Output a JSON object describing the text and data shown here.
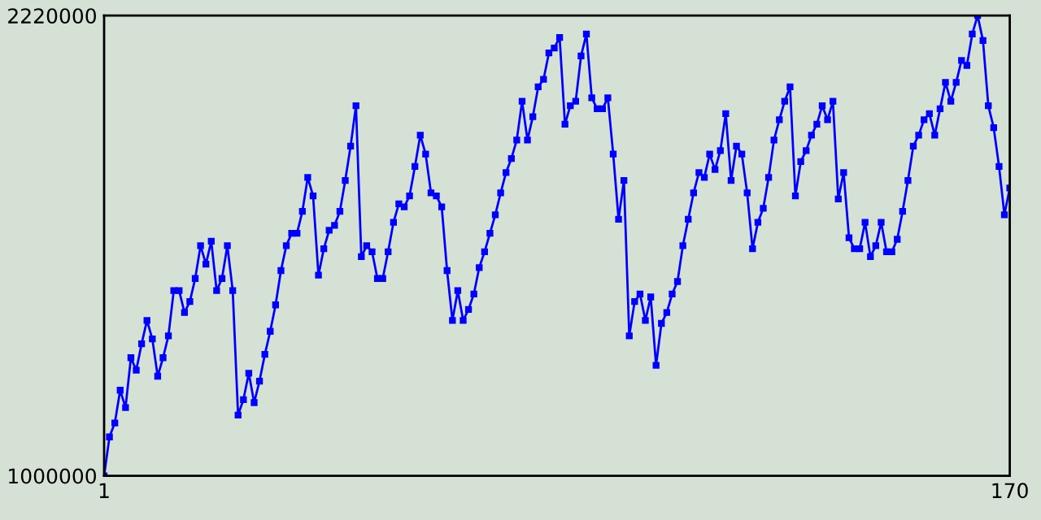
{
  "chart_data": {
    "type": "line",
    "x": [
      1,
      2,
      3,
      4,
      5,
      6,
      7,
      8,
      9,
      10,
      11,
      12,
      13,
      14,
      15,
      16,
      17,
      18,
      19,
      20,
      21,
      22,
      23,
      24,
      25,
      26,
      27,
      28,
      29,
      30,
      31,
      32,
      33,
      34,
      35,
      36,
      37,
      38,
      39,
      40,
      41,
      42,
      43,
      44,
      45,
      46,
      47,
      48,
      49,
      50,
      51,
      52,
      53,
      54,
      55,
      56,
      57,
      58,
      59,
      60,
      61,
      62,
      63,
      64,
      65,
      66,
      67,
      68,
      69,
      70,
      71,
      72,
      73,
      74,
      75,
      76,
      77,
      78,
      79,
      80,
      81,
      82,
      83,
      84,
      85,
      86,
      87,
      88,
      89,
      90,
      91,
      92,
      93,
      94,
      95,
      96,
      97,
      98,
      99,
      100,
      101,
      102,
      103,
      104,
      105,
      106,
      107,
      108,
      109,
      110,
      111,
      112,
      113,
      114,
      115,
      116,
      117,
      118,
      119,
      120,
      121,
      122,
      123,
      124,
      125,
      126,
      127,
      128,
      129,
      130,
      131,
      132,
      133,
      134,
      135,
      136,
      137,
      138,
      139,
      140,
      141,
      142,
      143,
      144,
      145,
      146,
      147,
      148,
      149,
      150,
      151,
      152,
      153,
      154,
      155,
      156,
      157,
      158,
      159,
      160,
      161,
      162,
      163,
      164,
      165,
      166,
      167,
      168,
      169,
      170
    ],
    "series": [
      {
        "color": "#0000ff",
        "values": [
          1000000,
          1103000,
          1140000,
          1227000,
          1181000,
          1313000,
          1280000,
          1350000,
          1412000,
          1363000,
          1264000,
          1313000,
          1371000,
          1491000,
          1491000,
          1433000,
          1462000,
          1523000,
          1610000,
          1561000,
          1622000,
          1491000,
          1523000,
          1610000,
          1491000,
          1161000,
          1202000,
          1272000,
          1194000,
          1251000,
          1322000,
          1383000,
          1453000,
          1544000,
          1610000,
          1643000,
          1643000,
          1701000,
          1791000,
          1742000,
          1532000,
          1602000,
          1651000,
          1664000,
          1701000,
          1783000,
          1874000,
          1981000,
          1581000,
          1610000,
          1594000,
          1523000,
          1523000,
          1594000,
          1672000,
          1721000,
          1713000,
          1742000,
          1820000,
          1903000,
          1853000,
          1750000,
          1742000,
          1713000,
          1544000,
          1412000,
          1491000,
          1412000,
          1441000,
          1482000,
          1552000,
          1594000,
          1643000,
          1692000,
          1750000,
          1804000,
          1841000,
          1890000,
          1993000,
          1890000,
          1952000,
          2031000,
          2051000,
          2121000,
          2134000,
          2162000,
          1932000,
          1981000,
          1993000,
          2113000,
          2171000,
          2002000,
          1973000,
          1973000,
          2002000,
          1853000,
          1680000,
          1783000,
          1371000,
          1462000,
          1482000,
          1412000,
          1474000,
          1293000,
          1404000,
          1433000,
          1482000,
          1515000,
          1610000,
          1680000,
          1750000,
          1804000,
          1791000,
          1853000,
          1812000,
          1862000,
          1960000,
          1783000,
          1874000,
          1853000,
          1750000,
          1602000,
          1672000,
          1709000,
          1791000,
          1890000,
          1944000,
          1993000,
          2031000,
          1742000,
          1833000,
          1862000,
          1903000,
          1932000,
          1981000,
          1944000,
          1993000,
          1734000,
          1804000,
          1631000,
          1602000,
          1602000,
          1672000,
          1581000,
          1610000,
          1672000,
          1594000,
          1594000,
          1627000,
          1701000,
          1783000,
          1874000,
          1903000,
          1944000,
          1960000,
          1903000,
          1973000,
          2043000,
          1993000,
          2043000,
          2101000,
          2088000,
          2171000,
          2220000,
          2154000,
          1981000,
          1923000,
          1820000,
          1692000,
          1763000
        ]
      }
    ],
    "xlim": [
      1,
      170
    ],
    "xticks": [
      1,
      170
    ],
    "ylim": [
      1000000,
      2220000
    ],
    "yticks": [
      1000000,
      2220000
    ],
    "marker": "square",
    "line_style": "solid",
    "grid": false
  }
}
